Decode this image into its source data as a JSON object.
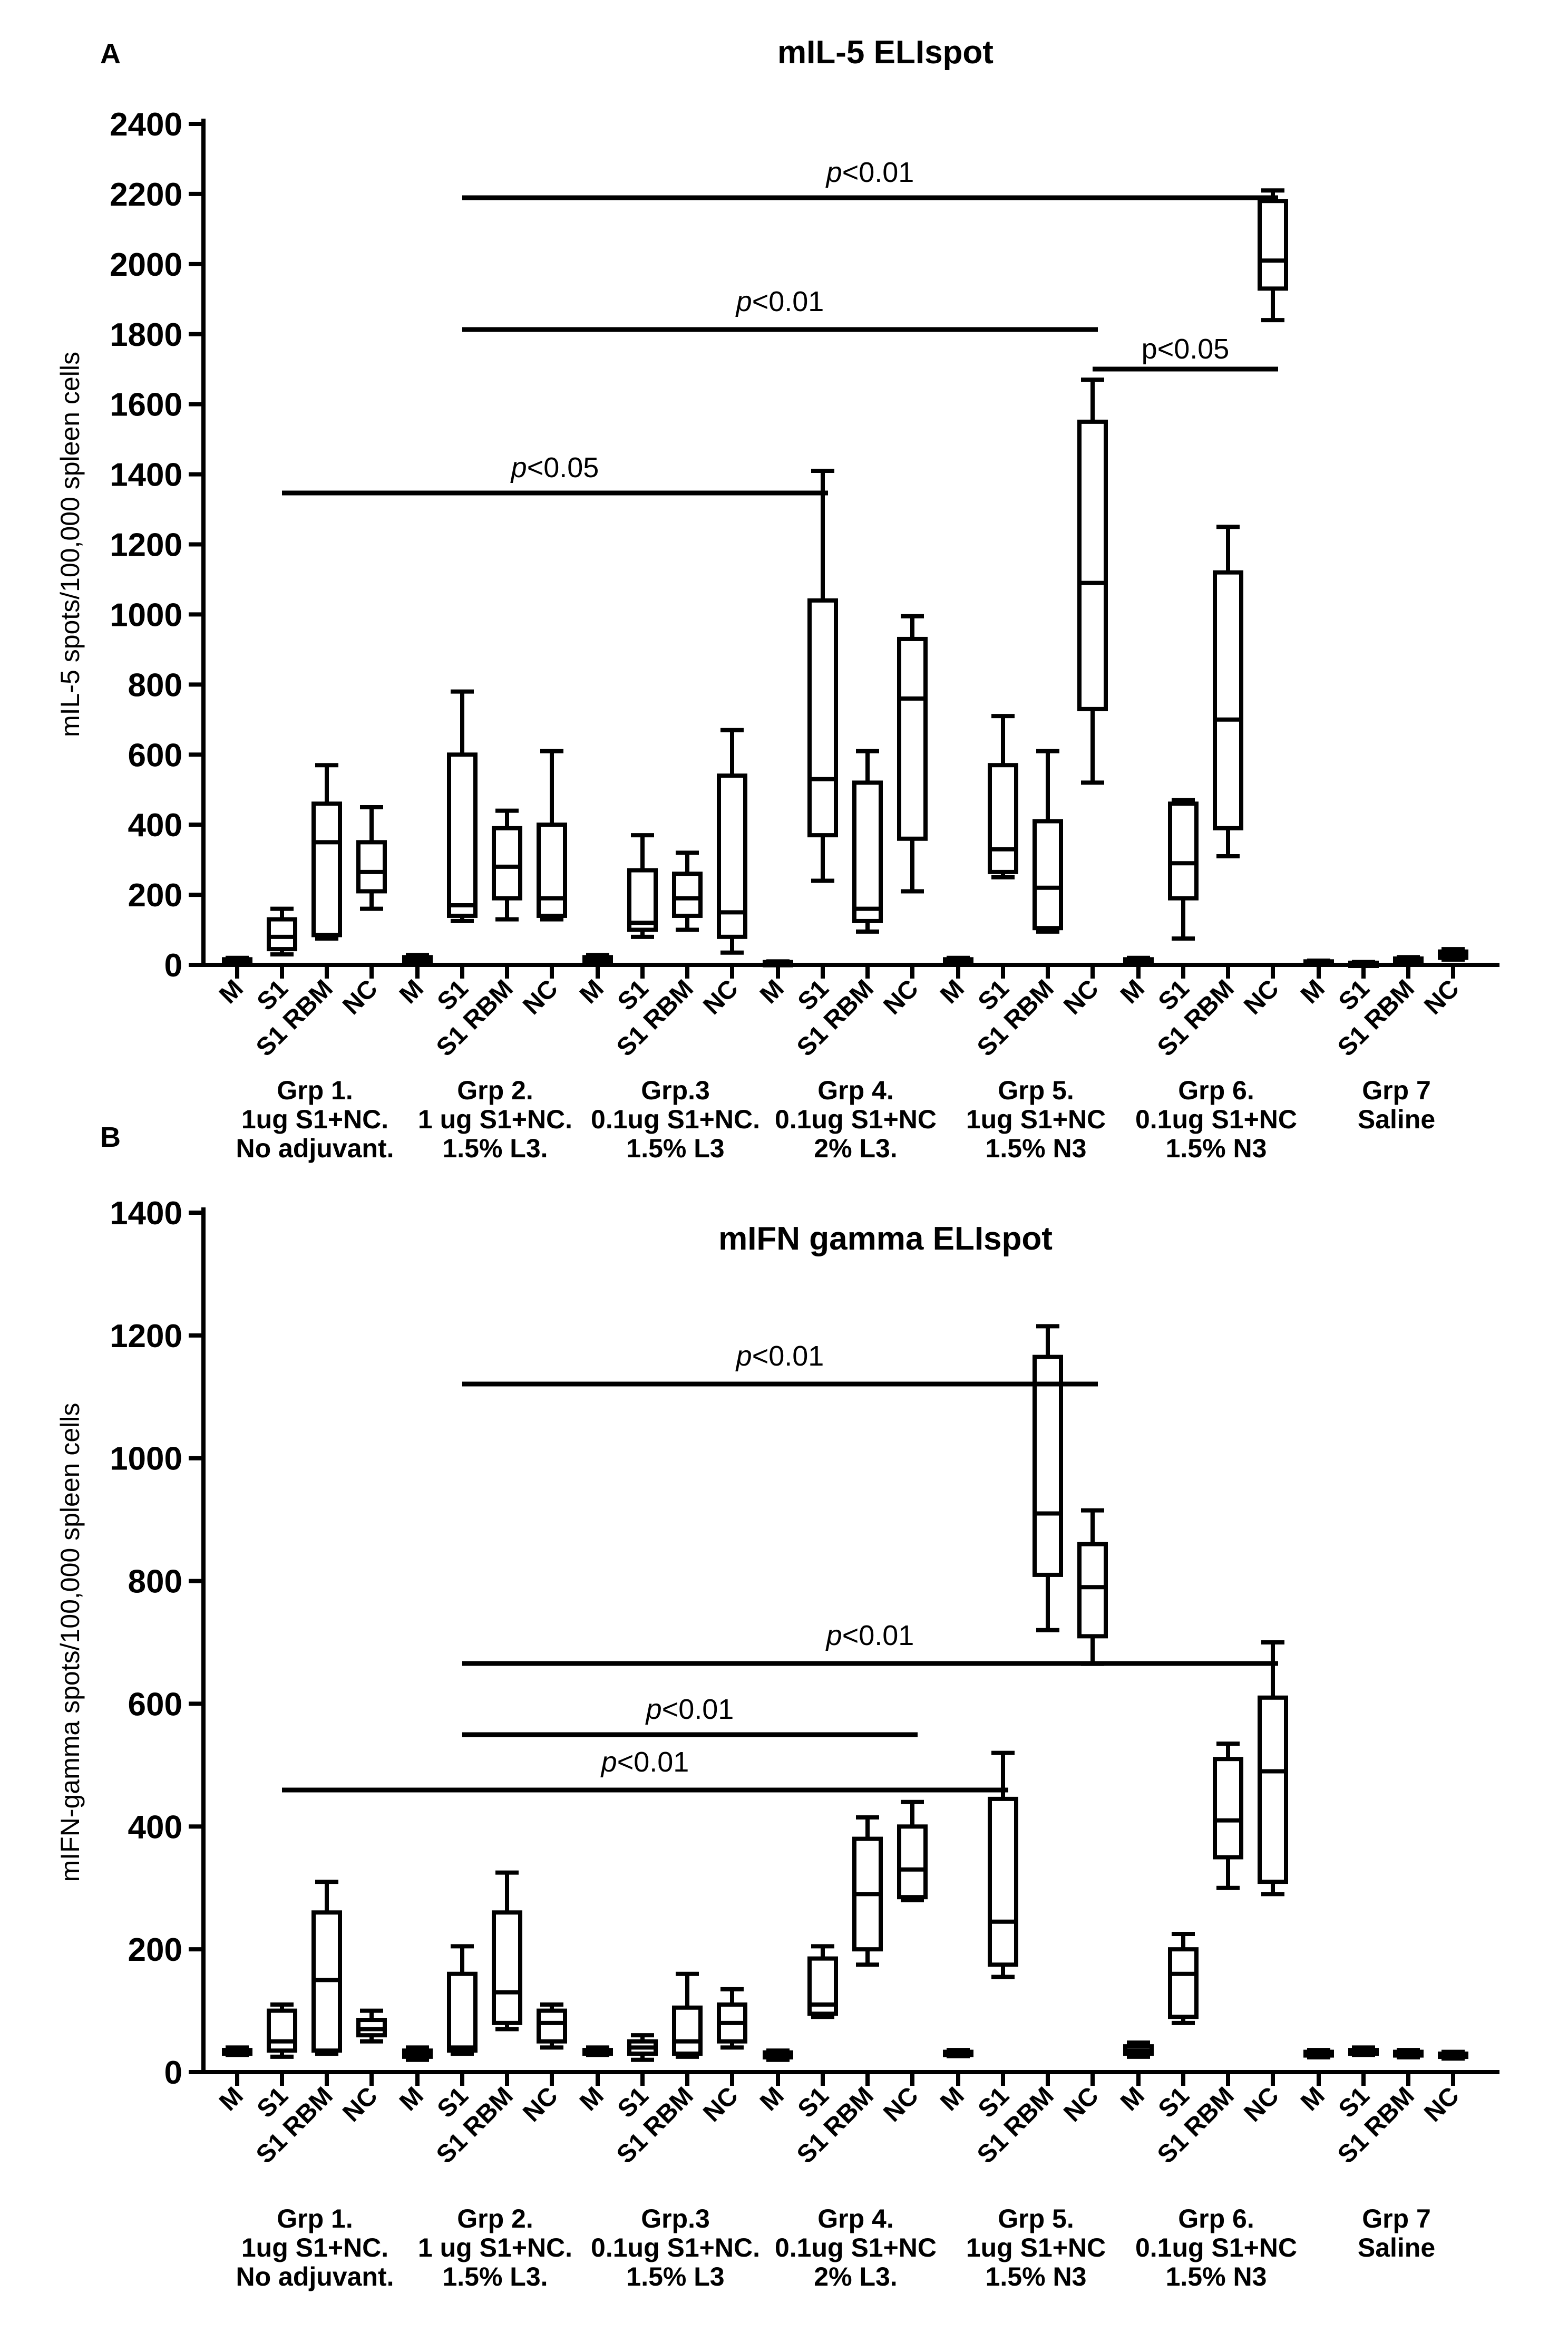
{
  "chart_data": [
    {
      "type": "box",
      "panel_label": "A",
      "title": "mIL-5 ELIspot",
      "ylabel": "mIL-5 spots/100,000 spleen cells",
      "ylim": [
        0,
        2400
      ],
      "yticks": [
        0,
        200,
        400,
        600,
        800,
        1000,
        1200,
        1400,
        1600,
        1800,
        2000,
        2200,
        2400
      ],
      "categories": [
        "M",
        "S1",
        "S1 RBM",
        "NC"
      ],
      "groups": [
        {
          "lines": [
            "Grp 1.",
            "1ug S1+NC.",
            "No adjuvant."
          ],
          "boxes": [
            [
              5,
              8,
              12,
              16,
              20
            ],
            [
              30,
              45,
              80,
              130,
              160
            ],
            [
              75,
              85,
              350,
              460,
              570
            ],
            [
              160,
              210,
              265,
              350,
              450
            ]
          ]
        },
        {
          "lines": [
            "Grp 2.",
            "1 ug S1+NC.",
            "1.5% L3."
          ],
          "boxes": [
            [
              8,
              12,
              16,
              22,
              28
            ],
            [
              125,
              140,
              170,
              600,
              780
            ],
            [
              130,
              190,
              280,
              390,
              440
            ],
            [
              130,
              140,
              190,
              400,
              610
            ]
          ]
        },
        {
          "lines": [
            "Grp.3",
            "0.1ug S1+NC.",
            "1.5% L3"
          ],
          "boxes": [
            [
              8,
              12,
              16,
              22,
              28
            ],
            [
              80,
              100,
              120,
              270,
              370
            ],
            [
              100,
              140,
              190,
              260,
              320
            ],
            [
              35,
              80,
              150,
              540,
              670
            ]
          ]
        },
        {
          "lines": [
            "Grp 4.",
            "0.1ug S1+NC",
            "2% L3."
          ],
          "boxes": [
            [
              0,
              4,
              6,
              8,
              10
            ],
            [
              240,
              370,
              530,
              1040,
              1410
            ],
            [
              95,
              125,
              160,
              520,
              610
            ],
            [
              210,
              360,
              760,
              930,
              995
            ]
          ]
        },
        {
          "lines": [
            "Grp 5.",
            "1ug S1+NC",
            "1.5% N3"
          ],
          "boxes": [
            [
              5,
              8,
              12,
              16,
              20
            ],
            [
              250,
              265,
              330,
              570,
              710
            ],
            [
              95,
              105,
              220,
              410,
              610
            ],
            [
              520,
              730,
              1090,
              1550,
              1670
            ]
          ]
        },
        {
          "lines": [
            "Grp 6.",
            "0.1ug S1+NC",
            "1.5% N3"
          ],
          "boxes": [
            [
              5,
              8,
              12,
              16,
              20
            ],
            [
              75,
              190,
              290,
              460,
              470
            ],
            [
              310,
              390,
              700,
              1120,
              1250
            ],
            [
              1840,
              1930,
              2010,
              2180,
              2210
            ]
          ]
        },
        {
          "lines": [
            "Grp 7",
            "Saline"
          ],
          "boxes": [
            [
              4,
              6,
              8,
              10,
              12
            ],
            [
              2,
              4,
              5,
              6,
              8
            ],
            [
              8,
              10,
              14,
              18,
              22
            ],
            [
              15,
              20,
              30,
              38,
              45
            ]
          ]
        }
      ],
      "annotations": [
        {
          "text": "<0.05",
          "italic_prefix": "p",
          "from_box": [
            0,
            1
          ],
          "to_box": [
            3,
            1
          ]
        },
        {
          "text": "<0.01",
          "italic_prefix": "p",
          "from_box": [
            1,
            1
          ],
          "to_box": [
            4,
            3
          ]
        },
        {
          "text": "<0.01",
          "italic_prefix": "p",
          "from_box": [
            1,
            1
          ],
          "to_box": [
            5,
            3
          ]
        },
        {
          "text": "p<0.05",
          "italic_prefix": "",
          "from_box": [
            4,
            3
          ],
          "to_box": [
            5,
            3
          ]
        }
      ]
    },
    {
      "type": "box",
      "panel_label": "B",
      "title": "mIFN gamma ELIspot",
      "ylabel": "mIFN-gamma spots/100,000 spleen cells",
      "ylim": [
        0,
        1400
      ],
      "yticks": [
        0,
        200,
        400,
        600,
        800,
        1000,
        1200,
        1400
      ],
      "categories": [
        "M",
        "S1",
        "S1 RBM",
        "NC"
      ],
      "groups": [
        {
          "lines": [
            "Grp 1.",
            "1ug S1+NC.",
            "No adjuvant."
          ],
          "boxes": [
            [
              28,
              30,
              33,
              36,
              40
            ],
            [
              25,
              35,
              50,
              100,
              110
            ],
            [
              30,
              35,
              150,
              260,
              310
            ],
            [
              50,
              60,
              70,
              85,
              100
            ]
          ]
        },
        {
          "lines": [
            "Grp 2.",
            "1 ug S1+NC.",
            "1.5% L3."
          ],
          "boxes": [
            [
              20,
              25,
              30,
              35,
              40
            ],
            [
              30,
              35,
              40,
              160,
              205
            ],
            [
              70,
              80,
              130,
              260,
              325
            ],
            [
              40,
              50,
              80,
              100,
              110
            ]
          ]
        },
        {
          "lines": [
            "Grp.3",
            "0.1ug S1+NC.",
            "1.5% L3"
          ],
          "boxes": [
            [
              28,
              30,
              33,
              36,
              40
            ],
            [
              20,
              30,
              40,
              50,
              60
            ],
            [
              25,
              30,
              50,
              105,
              160
            ],
            [
              40,
              50,
              80,
              110,
              135
            ]
          ]
        },
        {
          "lines": [
            "Grp 4.",
            "0.1ug S1+NC",
            "2% L3."
          ],
          "boxes": [
            [
              20,
              24,
              28,
              32,
              35
            ],
            [
              90,
              95,
              110,
              185,
              205
            ],
            [
              175,
              200,
              290,
              380,
              415
            ],
            [
              280,
              285,
              330,
              400,
              440
            ]
          ]
        },
        {
          "lines": [
            "Grp 5.",
            "1ug S1+NC",
            "1.5% N3"
          ],
          "boxes": [
            [
              26,
              28,
              30,
              33,
              36
            ],
            [
              155,
              175,
              245,
              445,
              520
            ],
            [
              720,
              810,
              910,
              1165,
              1215
            ],
            [
              665,
              710,
              790,
              860,
              915
            ]
          ]
        },
        {
          "lines": [
            "Grp 6.",
            "0.1ug S1+NC",
            "1.5% N3"
          ],
          "boxes": [
            [
              25,
              30,
              35,
              42,
              48
            ],
            [
              80,
              90,
              160,
              200,
              225
            ],
            [
              300,
              350,
              410,
              510,
              535
            ],
            [
              290,
              310,
              490,
              610,
              700
            ]
          ]
        },
        {
          "lines": [
            "Grp 7",
            "Saline"
          ],
          "boxes": [
            [
              24,
              27,
              30,
              33,
              36
            ],
            [
              28,
              30,
              33,
              36,
              40
            ],
            [
              24,
              27,
              30,
              33,
              36
            ],
            [
              22,
              25,
              28,
              30,
              33
            ]
          ]
        }
      ],
      "annotations": [
        {
          "text": "<0.01",
          "italic_prefix": "p",
          "from_box": [
            0,
            1
          ],
          "to_box": [
            4,
            1
          ]
        },
        {
          "text": "<0.01",
          "italic_prefix": "p",
          "from_box": [
            1,
            1
          ],
          "to_box": [
            3,
            3
          ]
        },
        {
          "text": "<0.01",
          "italic_prefix": "p",
          "from_box": [
            1,
            1
          ],
          "to_box": [
            5,
            3
          ]
        },
        {
          "text": "<0.01",
          "italic_prefix": "p",
          "from_box": [
            1,
            1
          ],
          "to_box": [
            4,
            3
          ]
        }
      ]
    }
  ]
}
